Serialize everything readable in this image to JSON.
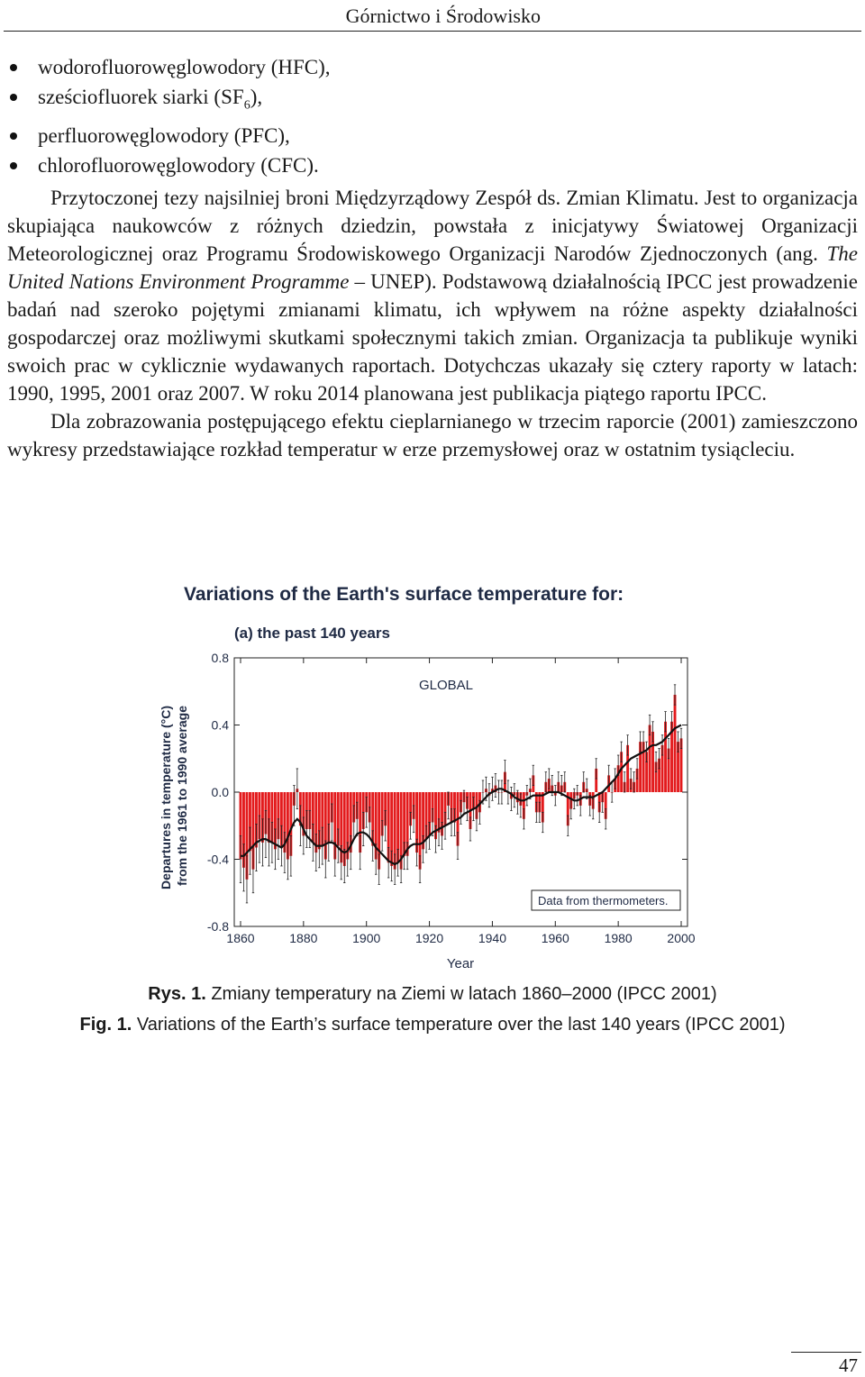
{
  "header": {
    "running_head": "Górnictwo i Środowisko"
  },
  "bullets": [
    {
      "pre": "wodorofluorowęglowodory (HFC),",
      "sub": "",
      "post": ""
    },
    {
      "pre": "sześciofluorek siarki (SF",
      "sub": "6",
      "post": "),"
    },
    {
      "pre": "perfluorowęglowodory (PFC),",
      "sub": "",
      "post": ""
    },
    {
      "pre": "chlorofluorowęglowodory (CFC).",
      "sub": "",
      "post": ""
    }
  ],
  "paragraphs": {
    "p1_before_italic": "Przytoczonej tezy najsilniej broni Międzyrządowy Zespół ds. Zmian Klimatu. Jest to organizacja skupiająca naukowców z różnych dziedzin, powstała z inicjatywy Światowej Organizacji Meteorologicznej oraz Programu Środowiskowego Organizacji Narodów Zjednoczonych (ang. ",
    "p1_italic": "The United Nations Environment Programme",
    "p1_after_italic": " – UNEP). Podstawową działalnością IPCC jest prowadzenie badań nad szeroko pojętymi zmianami klimatu, ich wpływem na różne aspekty działalności gospodarczej oraz możliwymi skutkami społecznymi takich zmian. Organizacja ta publikuje wyniki swoich prac w cyklicznie wydawanych raportach. Dotychczas ukazały się cztery raporty w latach: 1990, 1995, 2001 oraz 2007. W roku 2014 planowana jest publikacja piątego raportu IPCC.",
    "p2": "Dla zobrazowania postępującego efektu cieplarnianego w trzecim raporcie (2001) zamieszczono wykresy przedstawiające rozkład temperatur w erze przemysłowej oraz w ostatnim tysiącleciu."
  },
  "chart_data": {
    "type": "bar",
    "title": "Variations of the Earth's surface temperature for:",
    "subtitle": "(a) the past 140 years",
    "panel_label": "GLOBAL",
    "note": "Data from thermometers.",
    "xlabel": "Year",
    "ylabel": "Departures in temperature (°C) from the 1961 to 1990 average",
    "xlim": [
      1858,
      2002
    ],
    "ylim": [
      -0.8,
      0.8
    ],
    "x_ticks": [
      "1860",
      "1880",
      "1900",
      "1920",
      "1940",
      "1960",
      "1980",
      "2000"
    ],
    "y_ticks": [
      "0.8",
      "0.4",
      "0.0",
      "-0.4",
      "-0.8"
    ],
    "bar_color": "#e31a1c",
    "error_bar_color": "#222222",
    "x": [
      1860,
      1861,
      1862,
      1863,
      1864,
      1865,
      1866,
      1867,
      1868,
      1869,
      1870,
      1871,
      1872,
      1873,
      1874,
      1875,
      1876,
      1877,
      1878,
      1879,
      1880,
      1881,
      1882,
      1883,
      1884,
      1885,
      1886,
      1887,
      1888,
      1889,
      1890,
      1891,
      1892,
      1893,
      1894,
      1895,
      1896,
      1897,
      1898,
      1899,
      1900,
      1901,
      1902,
      1903,
      1904,
      1905,
      1906,
      1907,
      1908,
      1909,
      1910,
      1911,
      1912,
      1913,
      1914,
      1915,
      1916,
      1917,
      1918,
      1919,
      1920,
      1921,
      1922,
      1923,
      1924,
      1925,
      1926,
      1927,
      1928,
      1929,
      1930,
      1931,
      1932,
      1933,
      1934,
      1935,
      1936,
      1937,
      1938,
      1939,
      1940,
      1941,
      1942,
      1943,
      1944,
      1945,
      1946,
      1947,
      1948,
      1949,
      1950,
      1951,
      1952,
      1953,
      1954,
      1955,
      1956,
      1957,
      1958,
      1959,
      1960,
      1961,
      1962,
      1963,
      1964,
      1965,
      1966,
      1967,
      1968,
      1969,
      1970,
      1971,
      1972,
      1973,
      1974,
      1975,
      1976,
      1977,
      1978,
      1979,
      1980,
      1981,
      1982,
      1983,
      1984,
      1985,
      1986,
      1987,
      1988,
      1989,
      1990,
      1991,
      1992,
      1993,
      1994,
      1995,
      1996,
      1997,
      1998,
      1999,
      2000
    ],
    "values": [
      -0.4,
      -0.45,
      -0.52,
      -0.35,
      -0.46,
      -0.33,
      -0.28,
      -0.3,
      -0.25,
      -0.3,
      -0.3,
      -0.34,
      -0.28,
      -0.32,
      -0.36,
      -0.4,
      -0.38,
      -0.08,
      0.02,
      -0.2,
      -0.26,
      -0.22,
      -0.22,
      -0.3,
      -0.36,
      -0.34,
      -0.32,
      -0.4,
      -0.3,
      -0.18,
      -0.4,
      -0.32,
      -0.42,
      -0.44,
      -0.4,
      -0.36,
      -0.18,
      -0.16,
      -0.36,
      -0.22,
      -0.12,
      -0.18,
      -0.32,
      -0.4,
      -0.46,
      -0.26,
      -0.2,
      -0.42,
      -0.44,
      -0.46,
      -0.42,
      -0.46,
      -0.38,
      -0.38,
      -0.2,
      -0.16,
      -0.36,
      -0.46,
      -0.34,
      -0.28,
      -0.26,
      -0.18,
      -0.28,
      -0.24,
      -0.26,
      -0.2,
      -0.08,
      -0.18,
      -0.18,
      -0.32,
      -0.12,
      -0.06,
      -0.1,
      -0.22,
      -0.1,
      -0.16,
      -0.12,
      0.0,
      0.02,
      -0.02,
      0.02,
      0.04,
      0.0,
      0.0,
      0.12,
      0.0,
      -0.04,
      -0.02,
      -0.06,
      -0.08,
      -0.16,
      -0.02,
      0.02,
      0.1,
      -0.12,
      -0.12,
      -0.18,
      0.06,
      0.08,
      0.04,
      -0.02,
      0.06,
      0.04,
      0.06,
      -0.2,
      -0.1,
      -0.04,
      -0.02,
      -0.08,
      0.06,
      0.02,
      -0.08,
      -0.1,
      0.14,
      -0.12,
      -0.06,
      -0.16,
      0.1,
      0.0,
      0.08,
      0.16,
      0.24,
      0.06,
      0.28,
      0.08,
      0.06,
      0.14,
      0.3,
      0.3,
      0.24,
      0.4,
      0.36,
      0.18,
      0.2,
      0.28,
      0.42,
      0.26,
      0.42,
      0.58,
      0.3,
      0.32
    ],
    "errors": [
      0.14,
      0.14,
      0.14,
      0.14,
      0.14,
      0.14,
      0.14,
      0.14,
      0.14,
      0.14,
      0.12,
      0.12,
      0.12,
      0.12,
      0.12,
      0.12,
      0.12,
      0.12,
      0.12,
      0.12,
      0.11,
      0.11,
      0.11,
      0.11,
      0.11,
      0.11,
      0.11,
      0.11,
      0.11,
      0.11,
      0.1,
      0.1,
      0.1,
      0.1,
      0.1,
      0.1,
      0.1,
      0.1,
      0.1,
      0.1,
      0.09,
      0.09,
      0.09,
      0.09,
      0.09,
      0.09,
      0.09,
      0.09,
      0.09,
      0.09,
      0.08,
      0.08,
      0.08,
      0.08,
      0.08,
      0.08,
      0.08,
      0.08,
      0.08,
      0.08,
      0.08,
      0.08,
      0.08,
      0.08,
      0.08,
      0.08,
      0.08,
      0.08,
      0.08,
      0.08,
      0.07,
      0.07,
      0.07,
      0.07,
      0.07,
      0.07,
      0.07,
      0.07,
      0.07,
      0.07,
      0.07,
      0.07,
      0.07,
      0.07,
      0.07,
      0.07,
      0.07,
      0.07,
      0.07,
      0.07,
      0.06,
      0.06,
      0.06,
      0.06,
      0.06,
      0.06,
      0.06,
      0.06,
      0.06,
      0.06,
      0.06,
      0.06,
      0.06,
      0.06,
      0.06,
      0.06,
      0.06,
      0.06,
      0.06,
      0.06,
      0.06,
      0.06,
      0.06,
      0.06,
      0.06,
      0.06,
      0.06,
      0.06,
      0.06,
      0.06,
      0.06,
      0.06,
      0.06,
      0.06,
      0.06,
      0.06,
      0.06,
      0.06,
      0.06,
      0.06,
      0.06,
      0.06,
      0.06,
      0.06,
      0.06,
      0.06,
      0.06,
      0.06,
      0.06,
      0.06,
      0.06
    ],
    "smooth_values": [
      -0.38,
      -0.38,
      -0.36,
      -0.34,
      -0.32,
      -0.3,
      -0.29,
      -0.28,
      -0.28,
      -0.29,
      -0.3,
      -0.31,
      -0.32,
      -0.33,
      -0.31,
      -0.27,
      -0.22,
      -0.18,
      -0.16,
      -0.18,
      -0.22,
      -0.26,
      -0.28,
      -0.3,
      -0.32,
      -0.32,
      -0.32,
      -0.31,
      -0.3,
      -0.3,
      -0.31,
      -0.33,
      -0.35,
      -0.36,
      -0.35,
      -0.32,
      -0.28,
      -0.25,
      -0.24,
      -0.24,
      -0.25,
      -0.27,
      -0.3,
      -0.33,
      -0.35,
      -0.37,
      -0.39,
      -0.41,
      -0.42,
      -0.43,
      -0.42,
      -0.4,
      -0.37,
      -0.34,
      -0.32,
      -0.31,
      -0.31,
      -0.31,
      -0.3,
      -0.28,
      -0.26,
      -0.24,
      -0.23,
      -0.22,
      -0.21,
      -0.2,
      -0.19,
      -0.18,
      -0.17,
      -0.16,
      -0.15,
      -0.13,
      -0.12,
      -0.11,
      -0.1,
      -0.09,
      -0.07,
      -0.05,
      -0.03,
      -0.01,
      0.0,
      0.01,
      0.02,
      0.02,
      0.01,
      0.0,
      -0.01,
      -0.03,
      -0.04,
      -0.05,
      -0.05,
      -0.04,
      -0.03,
      -0.02,
      -0.02,
      -0.02,
      -0.02,
      -0.01,
      0.0,
      0.0,
      0.0,
      0.0,
      -0.01,
      -0.02,
      -0.03,
      -0.04,
      -0.05,
      -0.05,
      -0.04,
      -0.03,
      -0.03,
      -0.03,
      -0.03,
      -0.02,
      -0.01,
      0.0,
      0.02,
      0.04,
      0.06,
      0.08,
      0.11,
      0.14,
      0.16,
      0.18,
      0.2,
      0.21,
      0.22,
      0.23,
      0.24,
      0.25,
      0.27,
      0.28,
      0.28,
      0.29,
      0.3,
      0.32,
      0.34,
      0.36,
      0.38,
      0.39,
      0.4
    ]
  },
  "captions": {
    "rys_label": "Rys. 1.",
    "rys_text": " Zmiany temperatury na Ziemi w latach 1860–2000 (IPCC 2001)",
    "fig_label": "Fig. 1.",
    "fig_text": " Variations of the Earth’s surface temperature over the last 140 years (IPCC 2001)"
  },
  "footer": {
    "page_number": "47"
  }
}
